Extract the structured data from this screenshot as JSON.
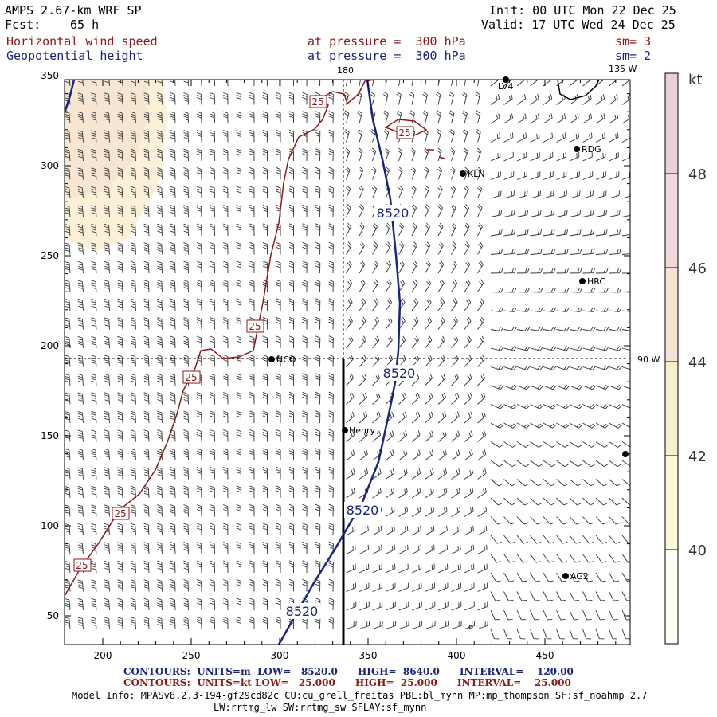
{
  "header": {
    "model": "AMPS 2.67-km WRF SP",
    "fcst_label": "Fcst:",
    "fcst_value": "65 h",
    "init": "Init: 00 UTC Mon 22 Dec 25",
    "valid": "Valid: 17 UTC Wed 24 Dec 25",
    "field1": "Horizontal wind speed",
    "field1_level": "at pressure =  300 hPa",
    "field1_sm": "sm= 3",
    "field2": "Geopotential height",
    "field2_level": "at pressure =  300 hPa",
    "field2_sm": "sm= 2"
  },
  "map": {
    "x_ticks": [
      "200",
      "250",
      "300",
      "350",
      "400",
      "450"
    ],
    "y_ticks": [
      "50",
      "100",
      "150",
      "200",
      "250",
      "300",
      "350"
    ],
    "meridian_labels": {
      "lon180": "180",
      "lon135w": "135 W",
      "lon90w": "90 W"
    },
    "stations": [
      "NCO",
      "Henry",
      "LV4",
      "RDG",
      "KLN",
      "HRC",
      "AG2"
    ],
    "contour_labels": {
      "height": "8520",
      "wind": "25"
    }
  },
  "colorbar": {
    "unit": "kt",
    "labels": [
      "40",
      "42",
      "44",
      "46",
      "48"
    ],
    "colors": [
      "#fffff5",
      "#fdf8dc",
      "#faefcc",
      "#f3e4d6",
      "#eed9dc"
    ]
  },
  "footer": {
    "line1": "CONTOURS:  UNITS=m  LOW=   8520.0      HIGH=  8640.0      INTERVAL=    120.00",
    "line2": "CONTOURS:  UNITS=kt LOW=   25.000      HIGH=  25.000      INTERVAL=    25.000",
    "model_info": "Model Info: MPASv8.2.3-194-gf29cd82c CU:cu_grell_freitas PBL:bl_mynn MP:mp_thompson SF:sf_noahmp 2.7",
    "model_info2": "LW:rrtmg_lw SW:rrtmg_sw SFLAY:sf_mynn"
  },
  "colors": {
    "height_contour": "#1a237e",
    "wind_contour": "#8b1a1a",
    "barb": "#333333"
  }
}
